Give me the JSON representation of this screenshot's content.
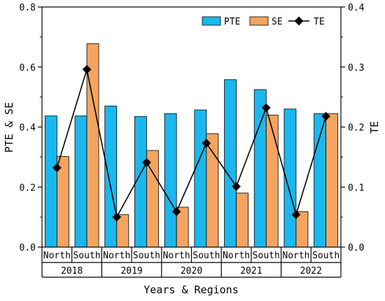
{
  "chart_data": {
    "type": "bar",
    "x_group_labels": [
      "2018",
      "2019",
      "2020",
      "2021",
      "2022"
    ],
    "x_sub_labels": [
      "North",
      "South"
    ],
    "categories": [
      "2018 North",
      "2018 South",
      "2019 North",
      "2019 South",
      "2020 North",
      "2020 South",
      "2021 North",
      "2021 South",
      "2022 North",
      "2022 South"
    ],
    "series": [
      {
        "name": "PTE",
        "kind": "bar",
        "axis": "left",
        "color": "#1ab8ee",
        "values": [
          0.437,
          0.437,
          0.47,
          0.435,
          0.445,
          0.457,
          0.558,
          0.525,
          0.46,
          0.445
        ]
      },
      {
        "name": "SE",
        "kind": "bar",
        "axis": "left",
        "color": "#f4a460",
        "values": [
          0.302,
          0.678,
          0.108,
          0.322,
          0.133,
          0.378,
          0.18,
          0.44,
          0.118,
          0.445
        ]
      },
      {
        "name": "TE",
        "kind": "line",
        "axis": "right",
        "color": "#000000",
        "marker": "diamond",
        "values": [
          0.132,
          0.296,
          0.05,
          0.141,
          0.059,
          0.173,
          0.101,
          0.232,
          0.054,
          0.218
        ]
      }
    ],
    "ylabel": "PTE & SE",
    "y2label": "TE",
    "xlabel": "Years & Regions",
    "ylim": [
      0,
      0.8
    ],
    "y2lim": [
      0,
      0.4
    ],
    "yticks": [
      "0.0",
      "0.2",
      "0.4",
      "0.6",
      "0.8"
    ],
    "y2ticks": [
      "0.0",
      "0.1",
      "0.2",
      "0.3",
      "0.4"
    ],
    "legend_position": "top-right",
    "grid": false
  }
}
